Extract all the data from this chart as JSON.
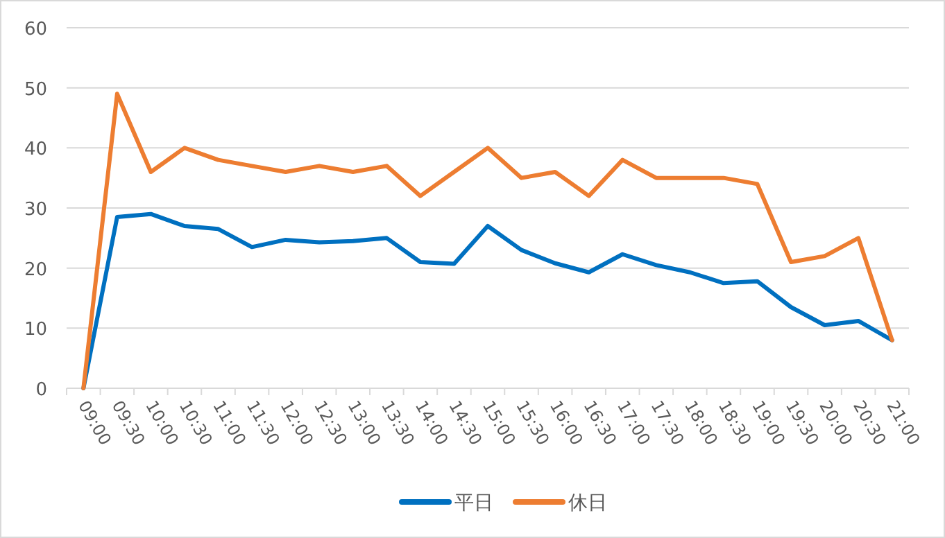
{
  "chart_data": {
    "type": "line",
    "categories": [
      "09:00",
      "09:30",
      "10:00",
      "10:30",
      "11:00",
      "11:30",
      "12:00",
      "12:30",
      "13:00",
      "13:30",
      "14:00",
      "14:30",
      "15:00",
      "15:30",
      "16:00",
      "16:30",
      "17:00",
      "17:30",
      "18:00",
      "18:30",
      "19:00",
      "19:30",
      "20:00",
      "20:30",
      "21:00"
    ],
    "series": [
      {
        "name": "平日",
        "color": "#0070c0",
        "values": [
          0,
          28.5,
          29,
          27,
          26.5,
          23.5,
          24.7,
          24.3,
          24.5,
          25,
          21,
          20.7,
          27,
          23,
          20.8,
          19.3,
          22.3,
          20.5,
          19.3,
          17.5,
          17.8,
          13.5,
          10.5,
          11.2,
          8
        ]
      },
      {
        "name": "休日",
        "color": "#ed7d31",
        "values": [
          0,
          49,
          36,
          40,
          38,
          37,
          36,
          37,
          36,
          37,
          32,
          36,
          40,
          35,
          36,
          32,
          38,
          35,
          35,
          35,
          34,
          21,
          22,
          25,
          8
        ]
      }
    ],
    "ylim": [
      0,
      60
    ],
    "yticks": [
      0,
      10,
      20,
      30,
      40,
      50,
      60
    ],
    "grid": "y",
    "legend": "bottom",
    "marker": "none",
    "line_style": "solid"
  }
}
